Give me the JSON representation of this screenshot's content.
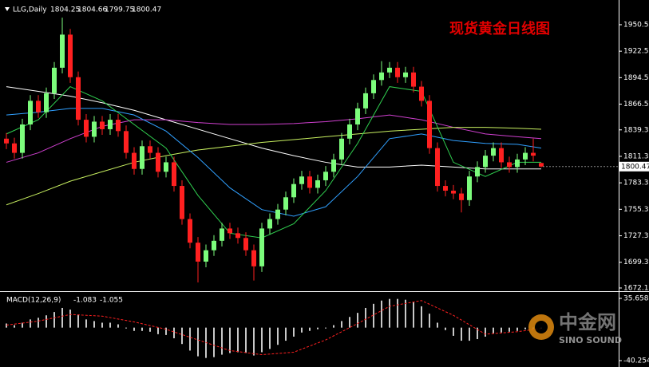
{
  "chart_data": [
    {
      "type": "candlestick",
      "symbol": "LLG,Daily",
      "title": "现货黄金日线图",
      "up_color": "#7cfc7c",
      "down_color": "#ff2020",
      "open": [
        1830,
        1825,
        1815,
        1845,
        1870,
        1858,
        1878,
        1905,
        1940,
        1895,
        1850,
        1832,
        1848,
        1840,
        1850,
        1838,
        1815,
        1798,
        1822,
        1815,
        1795,
        1805,
        1780,
        1745,
        1720,
        1700,
        1712,
        1722,
        1735,
        1730,
        1725,
        1712,
        1695,
        1735,
        1745,
        1755,
        1768,
        1782,
        1790,
        1778,
        1786,
        1795,
        1808,
        1830,
        1845,
        1862,
        1878,
        1892,
        1900,
        1905,
        1895,
        1900,
        1885,
        1870,
        1820,
        1780,
        1775,
        1772,
        1765,
        1790,
        1800,
        1812,
        1820,
        1805,
        1800,
        1808,
        1815,
        1804.25
      ],
      "high": [
        1836,
        1831,
        1851,
        1876,
        1876,
        1884,
        1911,
        1958,
        1946,
        1901,
        1856,
        1854,
        1854,
        1856,
        1856,
        1844,
        1821,
        1828,
        1828,
        1821,
        1811,
        1811,
        1786,
        1751,
        1726,
        1718,
        1728,
        1741,
        1741,
        1736,
        1731,
        1718,
        1741,
        1751,
        1761,
        1774,
        1788,
        1796,
        1796,
        1792,
        1801,
        1814,
        1836,
        1851,
        1868,
        1884,
        1898,
        1912,
        1911,
        1911,
        1906,
        1906,
        1891,
        1876,
        1826,
        1786,
        1781,
        1778,
        1796,
        1806,
        1818,
        1826,
        1826,
        1811,
        1814,
        1821,
        1830,
        1804.66
      ],
      "low": [
        1819,
        1809,
        1809,
        1839,
        1852,
        1852,
        1872,
        1899,
        1889,
        1844,
        1826,
        1826,
        1834,
        1834,
        1832,
        1809,
        1792,
        1792,
        1809,
        1789,
        1789,
        1774,
        1739,
        1714,
        1678,
        1694,
        1706,
        1716,
        1724,
        1719,
        1706,
        1680,
        1689,
        1729,
        1739,
        1749,
        1762,
        1776,
        1772,
        1772,
        1780,
        1789,
        1802,
        1824,
        1839,
        1856,
        1872,
        1886,
        1894,
        1889,
        1889,
        1879,
        1864,
        1814,
        1774,
        1769,
        1766,
        1752,
        1759,
        1784,
        1794,
        1806,
        1799,
        1794,
        1794,
        1802,
        1806,
        1799.75
      ],
      "close": [
        1825,
        1815,
        1845,
        1870,
        1858,
        1878,
        1905,
        1940,
        1895,
        1850,
        1832,
        1848,
        1840,
        1850,
        1838,
        1815,
        1798,
        1822,
        1815,
        1795,
        1805,
        1780,
        1745,
        1720,
        1700,
        1712,
        1722,
        1735,
        1730,
        1725,
        1712,
        1695,
        1735,
        1745,
        1755,
        1768,
        1782,
        1790,
        1778,
        1786,
        1795,
        1808,
        1830,
        1845,
        1862,
        1878,
        1892,
        1900,
        1905,
        1895,
        1900,
        1885,
        1870,
        1820,
        1780,
        1775,
        1772,
        1765,
        1790,
        1800,
        1812,
        1820,
        1805,
        1800,
        1808,
        1815,
        1812,
        1800.47
      ],
      "ma_x": [
        0,
        4,
        8,
        12,
        16,
        20,
        24,
        28,
        32,
        36,
        40,
        44,
        48,
        52,
        56,
        60,
        64,
        67
      ],
      "moving_averages": [
        {
          "color": "#ffffff",
          "values": [
            1885,
            1880,
            1875,
            1868,
            1860,
            1850,
            1840,
            1830,
            1820,
            1812,
            1805,
            1800,
            1800,
            1802,
            1800,
            1798,
            1798,
            1798
          ]
        },
        {
          "color": "#d040d0",
          "values": [
            1805,
            1815,
            1830,
            1843,
            1850,
            1850,
            1847,
            1845,
            1845,
            1846,
            1848,
            1851,
            1855,
            1850,
            1842,
            1835,
            1832,
            1830
          ]
        },
        {
          "color": "#c8f060",
          "values": [
            1760,
            1772,
            1785,
            1795,
            1805,
            1812,
            1818,
            1822,
            1826,
            1829,
            1832,
            1835,
            1838,
            1840,
            1842,
            1842,
            1841,
            1840
          ]
        },
        {
          "color": "#30a0ff",
          "values": [
            1855,
            1858,
            1862,
            1862,
            1855,
            1838,
            1810,
            1778,
            1755,
            1748,
            1758,
            1790,
            1830,
            1835,
            1828,
            1825,
            1824,
            1820
          ]
        },
        {
          "color": "#30d050",
          "values": [
            1835,
            1850,
            1885,
            1870,
            1845,
            1820,
            1770,
            1730,
            1725,
            1740,
            1775,
            1825,
            1885,
            1880,
            1805,
            1790,
            1805,
            1805
          ]
        }
      ],
      "ylim": [
        1668.7,
        1972.4
      ],
      "yticks": [
        {
          "value": 1950.5,
          "label": "1950.50"
        },
        {
          "value": 1922.5,
          "label": "1922.50"
        },
        {
          "value": 1894.5,
          "label": "1894.50"
        },
        {
          "value": 1866.5,
          "label": "1866.50"
        },
        {
          "value": 1839.3,
          "label": "1839.30"
        },
        {
          "value": 1811.3,
          "label": "1811.30"
        },
        {
          "value": 1783.3,
          "label": "1783.30"
        },
        {
          "value": 1755.3,
          "label": "1755.30"
        },
        {
          "value": 1727.3,
          "label": "1727.30"
        },
        {
          "value": 1699.3,
          "label": "1699.30"
        },
        {
          "value": 1672.1,
          "label": "1672.10"
        }
      ]
    },
    {
      "type": "macd",
      "label": "MACD(12,26,9)",
      "main_value": -1.083,
      "signal_value": -1.055,
      "bar_color": "#c8c8c8",
      "signal_color": "#ff2020",
      "values": [
        5,
        3,
        6,
        10,
        12,
        15,
        19,
        24,
        22,
        16,
        10,
        8,
        6,
        6,
        4,
        0,
        -4,
        -4,
        -5,
        -8,
        -9,
        -13,
        -20,
        -28,
        -35,
        -37,
        -36,
        -33,
        -31,
        -30,
        -31,
        -34,
        -30,
        -26,
        -21,
        -16,
        -11,
        -6,
        -4,
        -2,
        0,
        3,
        8,
        13,
        18,
        24,
        29,
        33,
        35,
        35,
        34,
        31,
        26,
        17,
        6,
        -3,
        -10,
        -16,
        -16,
        -14,
        -11,
        -7,
        -6,
        -5,
        -4,
        -2,
        -1,
        -1.083
      ],
      "signal_x": [
        0,
        4,
        8,
        12,
        16,
        20,
        24,
        28,
        32,
        36,
        40,
        44,
        48,
        52,
        56,
        60,
        64,
        67
      ],
      "signal": [
        3,
        8,
        16,
        14,
        7,
        -2,
        -15,
        -28,
        -33,
        -30,
        -15,
        5,
        26,
        33,
        15,
        -8,
        -5,
        -1.055
      ],
      "ylim": [
        -46.09,
        42.47
      ],
      "yticks": [
        35.658,
        -40.254
      ]
    }
  ],
  "watermark": {
    "name": "中金网",
    "subtitle": "SINO SOUND"
  }
}
